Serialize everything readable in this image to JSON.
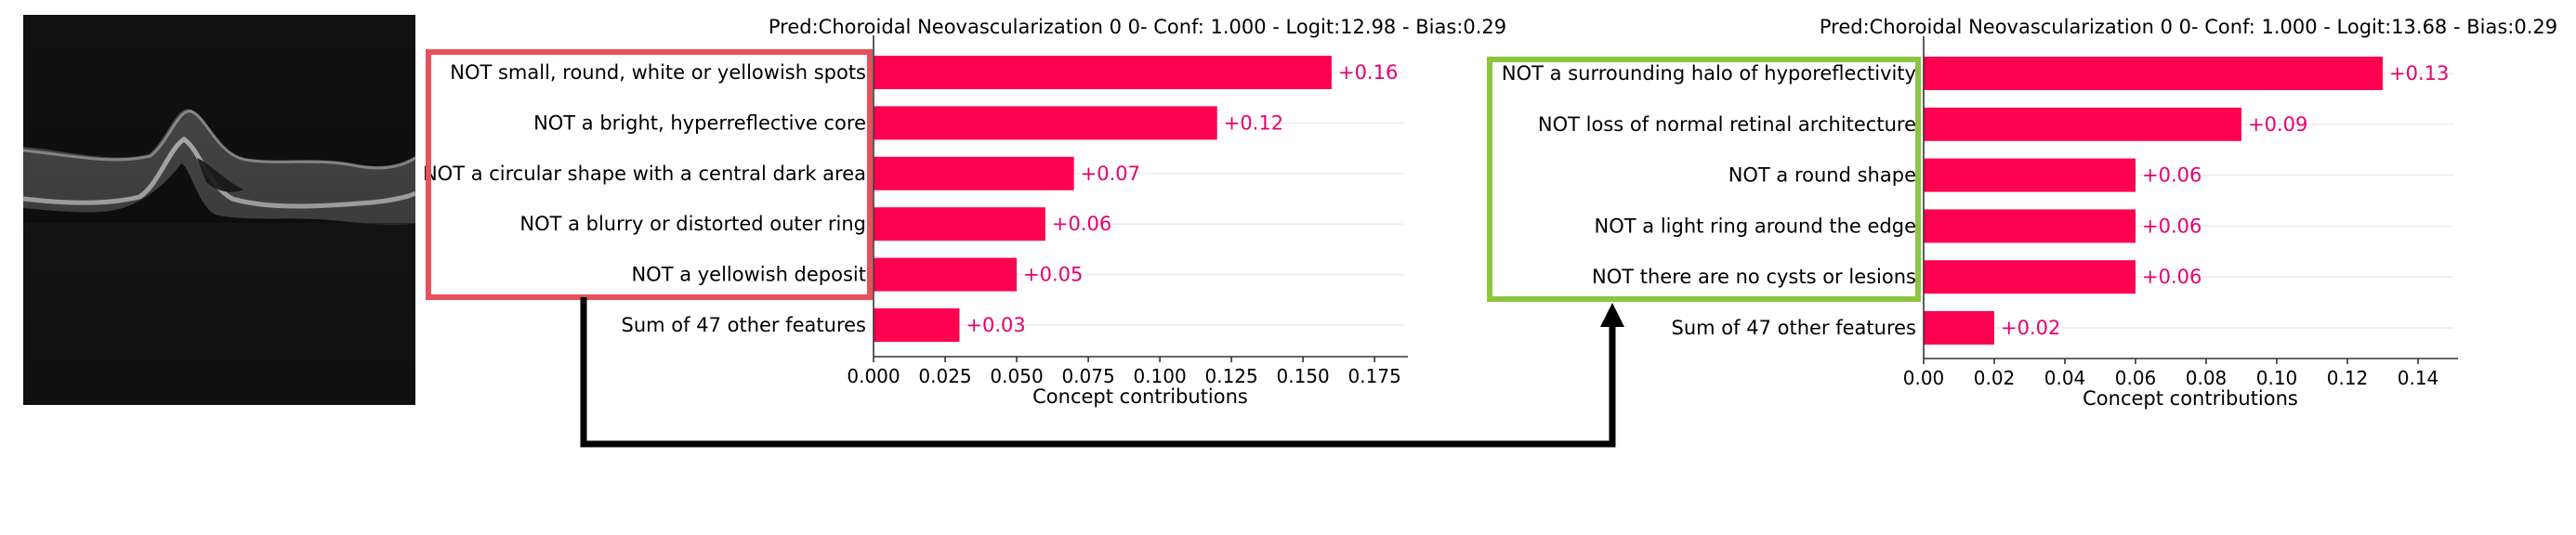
{
  "colors": {
    "bar": "#ff0051",
    "value_label": "#e6006e",
    "grid": "#ececec",
    "axis": "#333333",
    "highlight_left": "#e8505b",
    "highlight_right": "#8cc63f",
    "arrow": "#000000",
    "oct_background": "#0a0a0a"
  },
  "image_panel": {
    "content": "grayscale retinal OCT B-scan"
  },
  "chart_data": [
    {
      "type": "bar",
      "orientation": "horizontal",
      "title": "Pred:Choroidal Neovascularization 0 0- Conf: 1.000 - Logit:12.98 - Bias:0.29",
      "xlabel": "Concept contributions",
      "categories": [
        "NOT small, round, white or yellowish spots",
        "NOT a bright, hyperreflective core",
        "NOT a circular shape with a central dark area",
        "NOT a blurry or distorted outer ring",
        "NOT a yellowish deposit",
        "Sum of 47 other features"
      ],
      "values": [
        0.16,
        0.12,
        0.07,
        0.06,
        0.05,
        0.03
      ],
      "value_labels": [
        "+0.16",
        "+0.12",
        "+0.07",
        "+0.06",
        "+0.05",
        "+0.03"
      ],
      "xlim": [
        0,
        0.185
      ],
      "xticks": [
        0.0,
        0.025,
        0.05,
        0.075,
        0.1,
        0.125,
        0.15,
        0.175
      ],
      "xtick_labels": [
        "0.000",
        "0.025",
        "0.050",
        "0.075",
        "0.100",
        "0.125",
        "0.150",
        "0.175"
      ],
      "grid": "horizontal lines only",
      "highlight": "top 5 rows boxed in red"
    },
    {
      "type": "bar",
      "orientation": "horizontal",
      "title": "Pred:Choroidal Neovascularization 0 0- Conf: 1.000 - Logit:13.68 - Bias:0.29",
      "xlabel": "Concept contributions",
      "categories": [
        "NOT a surrounding halo of hyporeflectivity",
        "NOT loss of normal retinal architecture",
        "NOT a round shape",
        "NOT a light ring around the edge",
        "NOT there are no cysts or lesions",
        "Sum of 47 other features"
      ],
      "values": [
        0.13,
        0.09,
        0.06,
        0.06,
        0.06,
        0.02
      ],
      "value_labels": [
        "+0.13",
        "+0.09",
        "+0.06",
        "+0.06",
        "+0.06",
        "+0.02"
      ],
      "xlim": [
        0,
        0.15
      ],
      "xticks": [
        0.0,
        0.02,
        0.04,
        0.06,
        0.08,
        0.1,
        0.12,
        0.14
      ],
      "xtick_labels": [
        "0.00",
        "0.02",
        "0.04",
        "0.06",
        "0.08",
        "0.10",
        "0.12",
        "0.14"
      ],
      "grid": "horizontal lines only",
      "highlight": "top 5 rows boxed in green"
    }
  ]
}
